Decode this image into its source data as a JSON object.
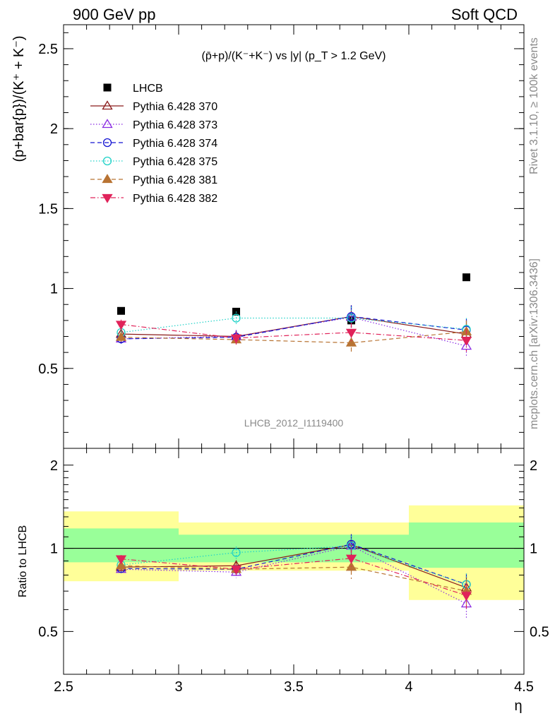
{
  "header": {
    "left": "900 GeV pp",
    "right": "Soft QCD"
  },
  "side_labels": {
    "rivet": "Rivet 3.1.10, ≥ 100k events",
    "mcplots": "mcplots.cern.ch [arXiv:1306.3436]"
  },
  "main_plot": {
    "title": "(p̄+p)/(K⁻+K⁻) vs |y| (p_T > 1.2 GeV)",
    "ylabel": "(p+bar{p})/(K⁺ + K⁻)",
    "analysis_id": "LHCB_2012_I1119400"
  },
  "ratio_plot": {
    "ylabel": "Ratio to LHCB",
    "xlabel": "η"
  },
  "legend": [
    {
      "name": "LHCB",
      "color": "#000000",
      "marker": "filled-square",
      "dash": "none"
    },
    {
      "name": "Pythia 6.428 370",
      "color": "#8b1a1a",
      "marker": "open-triangle-up",
      "dash": "solid"
    },
    {
      "name": "Pythia 6.428 373",
      "color": "#8a2be2",
      "marker": "open-triangle-up",
      "dash": "dotted"
    },
    {
      "name": "Pythia 6.428 374",
      "color": "#1414d2",
      "marker": "open-circle",
      "dash": "dashed"
    },
    {
      "name": "Pythia 6.428 375",
      "color": "#20d2c8",
      "marker": "open-circle",
      "dash": "dotted"
    },
    {
      "name": "Pythia 6.428 381",
      "color": "#b87333",
      "marker": "filled-triangle-up",
      "dash": "dashed"
    },
    {
      "name": "Pythia 6.428 382",
      "color": "#e0235a",
      "marker": "filled-triangle-down",
      "dash": "dashdot"
    }
  ],
  "chart_data": [
    {
      "type": "scatter",
      "title": "(p̄+p)/(K⁻+K⁻) vs |y| (p_T > 1.2 GeV)",
      "xlabel": "",
      "ylabel": "(p+bar{p})/(K⁺ + K⁻)",
      "xlim": [
        2.5,
        4.5
      ],
      "ylim": [
        0,
        2.65
      ],
      "yticks": [
        0.5,
        1,
        1.5,
        2,
        2.5
      ],
      "ytick_labels": [
        "0.5",
        "1",
        "1.5",
        "2",
        "2.5"
      ],
      "x": [
        2.75,
        3.25,
        3.75,
        4.25
      ],
      "series": [
        {
          "name": "LHCB",
          "values": [
            0.86,
            0.855,
            0.8,
            1.07
          ],
          "errors": [
            0.01,
            0.01,
            0.01,
            0.01
          ]
        },
        {
          "name": "Pythia 6.428 370",
          "values": [
            0.715,
            0.7,
            0.825,
            0.715
          ],
          "errors": [
            0.03,
            0.04,
            0.07,
            0.07
          ]
        },
        {
          "name": "Pythia 6.428 373",
          "values": [
            0.685,
            0.7,
            0.82,
            0.64
          ],
          "errors": [
            0.03,
            0.04,
            0.07,
            0.07
          ]
        },
        {
          "name": "Pythia 6.428 374",
          "values": [
            0.685,
            0.695,
            0.825,
            0.74
          ],
          "errors": [
            0.03,
            0.04,
            0.07,
            0.07
          ]
        },
        {
          "name": "Pythia 6.428 375",
          "values": [
            0.725,
            0.815,
            0.815,
            0.745
          ],
          "errors": [
            0.03,
            0.04,
            0.07,
            0.07
          ]
        },
        {
          "name": "Pythia 6.428 381",
          "values": [
            0.695,
            0.68,
            0.66,
            0.73
          ],
          "errors": [
            0.03,
            0.04,
            0.06,
            0.07
          ]
        },
        {
          "name": "Pythia 6.428 382",
          "values": [
            0.775,
            0.69,
            0.725,
            0.675
          ],
          "errors": [
            0.03,
            0.04,
            0.06,
            0.07
          ]
        }
      ]
    },
    {
      "type": "scatter",
      "title": "",
      "xlabel": "η",
      "ylabel": "Ratio to LHCB",
      "xlim": [
        2.5,
        4.5
      ],
      "ylim": [
        0.35,
        2.3
      ],
      "xticks": [
        2.5,
        3,
        3.5,
        4,
        4.5
      ],
      "xtick_labels": [
        "2.5",
        "3",
        "3.5",
        "4",
        "4.5"
      ],
      "yticks": [
        0.5,
        1,
        2
      ],
      "ytick_labels": [
        "0.5",
        "1",
        "2"
      ],
      "reference_line": 1,
      "x": [
        2.75,
        3.25,
        3.75,
        4.25
      ],
      "bands": [
        {
          "x": [
            2.5,
            3.0
          ],
          "inner": [
            0.89,
            1.18
          ],
          "outer": [
            0.76,
            1.36
          ]
        },
        {
          "x": [
            3.0,
            3.5
          ],
          "inner": [
            0.89,
            1.12
          ],
          "outer": [
            0.83,
            1.24
          ]
        },
        {
          "x": [
            3.5,
            4.0
          ],
          "inner": [
            0.89,
            1.12
          ],
          "outer": [
            0.83,
            1.24
          ]
        },
        {
          "x": [
            4.0,
            4.5
          ],
          "inner": [
            0.85,
            1.24
          ],
          "outer": [
            0.65,
            1.43
          ]
        }
      ],
      "series": [
        {
          "name": "Pythia 6.428 370",
          "values": [
            0.855,
            0.865,
            1.03,
            0.72
          ],
          "errors": [
            0.03,
            0.04,
            0.09,
            0.07
          ]
        },
        {
          "name": "Pythia 6.428 373",
          "values": [
            0.84,
            0.82,
            1.02,
            0.63
          ],
          "errors": [
            0.03,
            0.04,
            0.09,
            0.07
          ]
        },
        {
          "name": "Pythia 6.428 374",
          "values": [
            0.845,
            0.84,
            1.035,
            0.74
          ],
          "errors": [
            0.03,
            0.04,
            0.09,
            0.07
          ]
        },
        {
          "name": "Pythia 6.428 375",
          "values": [
            0.87,
            0.965,
            1.02,
            0.74
          ],
          "errors": [
            0.03,
            0.05,
            0.09,
            0.07
          ]
        },
        {
          "name": "Pythia 6.428 381",
          "values": [
            0.865,
            0.84,
            0.855,
            0.7
          ],
          "errors": [
            0.03,
            0.04,
            0.08,
            0.07
          ]
        },
        {
          "name": "Pythia 6.428 382",
          "values": [
            0.915,
            0.84,
            0.92,
            0.675
          ],
          "errors": [
            0.03,
            0.04,
            0.08,
            0.07
          ]
        }
      ]
    }
  ]
}
